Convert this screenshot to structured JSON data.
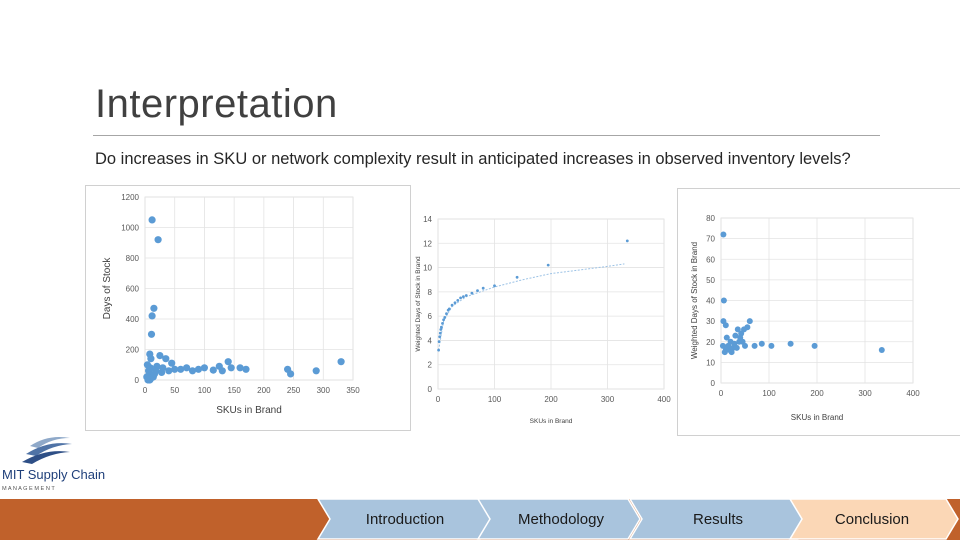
{
  "slide": {
    "title": "Interpretation",
    "subtitle": "Do increases in SKU or network complexity result in anticipated increases in observed inventory levels?"
  },
  "logo": {
    "name": "MIT Supply Chain",
    "tagline": "M A N A G E M E N T"
  },
  "nav": {
    "items": [
      {
        "label": "Introduction",
        "active": false
      },
      {
        "label": "Methodology",
        "active": false
      },
      {
        "label": "Results",
        "active": false
      },
      {
        "label": "Conclusion",
        "active": true
      }
    ],
    "colors": {
      "inactive": "#a9c4dd",
      "active": "#fbd7b6",
      "bar": "#c0612b"
    }
  },
  "chart_data": [
    {
      "type": "scatter",
      "title": "",
      "xlabel": "SKUs in Brand",
      "ylabel": "Days of Stock",
      "xlim": [
        0,
        350
      ],
      "ylim": [
        0,
        1200
      ],
      "xticks": [
        0,
        50,
        100,
        150,
        200,
        250,
        300,
        350
      ],
      "yticks": [
        0,
        200,
        400,
        600,
        800,
        1000,
        1200
      ],
      "grid": true,
      "color": "#5b9bd5",
      "points": [
        [
          12,
          1050
        ],
        [
          22,
          920
        ],
        [
          15,
          470
        ],
        [
          12,
          420
        ],
        [
          11,
          300
        ],
        [
          8,
          170
        ],
        [
          10,
          140
        ],
        [
          25,
          160
        ],
        [
          35,
          140
        ],
        [
          45,
          110
        ],
        [
          20,
          90
        ],
        [
          30,
          80
        ],
        [
          18,
          60
        ],
        [
          28,
          50
        ],
        [
          40,
          60
        ],
        [
          50,
          70
        ],
        [
          60,
          70
        ],
        [
          70,
          80
        ],
        [
          80,
          60
        ],
        [
          90,
          70
        ],
        [
          100,
          80
        ],
        [
          115,
          65
        ],
        [
          125,
          90
        ],
        [
          130,
          60
        ],
        [
          140,
          120
        ],
        [
          145,
          80
        ],
        [
          160,
          80
        ],
        [
          170,
          70
        ],
        [
          240,
          70
        ],
        [
          245,
          40
        ],
        [
          288,
          60
        ],
        [
          330,
          120
        ],
        [
          5,
          0
        ],
        [
          8,
          0
        ],
        [
          10,
          10
        ],
        [
          12,
          30
        ],
        [
          14,
          20
        ],
        [
          16,
          40
        ],
        [
          6,
          60
        ],
        [
          9,
          80
        ],
        [
          4,
          100
        ],
        [
          3,
          20
        ]
      ]
    },
    {
      "type": "scatter",
      "title": "",
      "xlabel": "SKUs in Brand",
      "ylabel": "Weighted Days of Stock in Brand",
      "xlim": [
        0,
        400
      ],
      "ylim": [
        0,
        14
      ],
      "xticks": [
        0,
        100,
        200,
        300,
        400
      ],
      "yticks": [
        0,
        2,
        4,
        6,
        8,
        10,
        12,
        14
      ],
      "grid": true,
      "color": "#5b9bd5",
      "trendline": "power",
      "points": [
        [
          1,
          3.2
        ],
        [
          2,
          3.9
        ],
        [
          3,
          4.3
        ],
        [
          4,
          4.6
        ],
        [
          5,
          4.9
        ],
        [
          6,
          5.1
        ],
        [
          8,
          5.4
        ],
        [
          10,
          5.7
        ],
        [
          12,
          5.9
        ],
        [
          15,
          6.2
        ],
        [
          18,
          6.5
        ],
        [
          20,
          6.6
        ],
        [
          25,
          6.9
        ],
        [
          30,
          7.1
        ],
        [
          35,
          7.3
        ],
        [
          40,
          7.5
        ],
        [
          45,
          7.6
        ],
        [
          50,
          7.7
        ],
        [
          60,
          7.9
        ],
        [
          70,
          8.1
        ],
        [
          80,
          8.3
        ],
        [
          100,
          8.5
        ],
        [
          140,
          9.2
        ],
        [
          195,
          10.2
        ],
        [
          335,
          12.2
        ]
      ],
      "trend_points": [
        [
          1,
          3.2
        ],
        [
          10,
          5.6
        ],
        [
          25,
          6.8
        ],
        [
          50,
          7.6
        ],
        [
          100,
          8.4
        ],
        [
          150,
          9.0
        ],
        [
          200,
          9.5
        ],
        [
          250,
          9.8
        ],
        [
          300,
          10.1
        ],
        [
          330,
          10.3
        ]
      ]
    },
    {
      "type": "scatter",
      "title": "",
      "xlabel": "SKUs in Brand",
      "ylabel": "Weighted Days of Stock in Brand",
      "xlim": [
        0,
        400
      ],
      "ylim": [
        0,
        80
      ],
      "xticks": [
        0,
        100,
        200,
        300,
        400
      ],
      "yticks": [
        0,
        10,
        20,
        30,
        40,
        50,
        60,
        70,
        80
      ],
      "grid": true,
      "color": "#5b9bd5",
      "points": [
        [
          5,
          72
        ],
        [
          6,
          40
        ],
        [
          5,
          30
        ],
        [
          10,
          28
        ],
        [
          12,
          22
        ],
        [
          15,
          18
        ],
        [
          20,
          20
        ],
        [
          25,
          17
        ],
        [
          30,
          23
        ],
        [
          35,
          26
        ],
        [
          40,
          22
        ],
        [
          45,
          20
        ],
        [
          50,
          18
        ],
        [
          60,
          30
        ],
        [
          70,
          18
        ],
        [
          85,
          19
        ],
        [
          105,
          18
        ],
        [
          145,
          19
        ],
        [
          195,
          18
        ],
        [
          335,
          16
        ],
        [
          8,
          15
        ],
        [
          18,
          16
        ],
        [
          22,
          15
        ],
        [
          28,
          19
        ],
        [
          33,
          17
        ],
        [
          38,
          20
        ],
        [
          42,
          24
        ],
        [
          48,
          26
        ],
        [
          55,
          27
        ],
        [
          4,
          18
        ],
        [
          10,
          16
        ]
      ]
    }
  ]
}
